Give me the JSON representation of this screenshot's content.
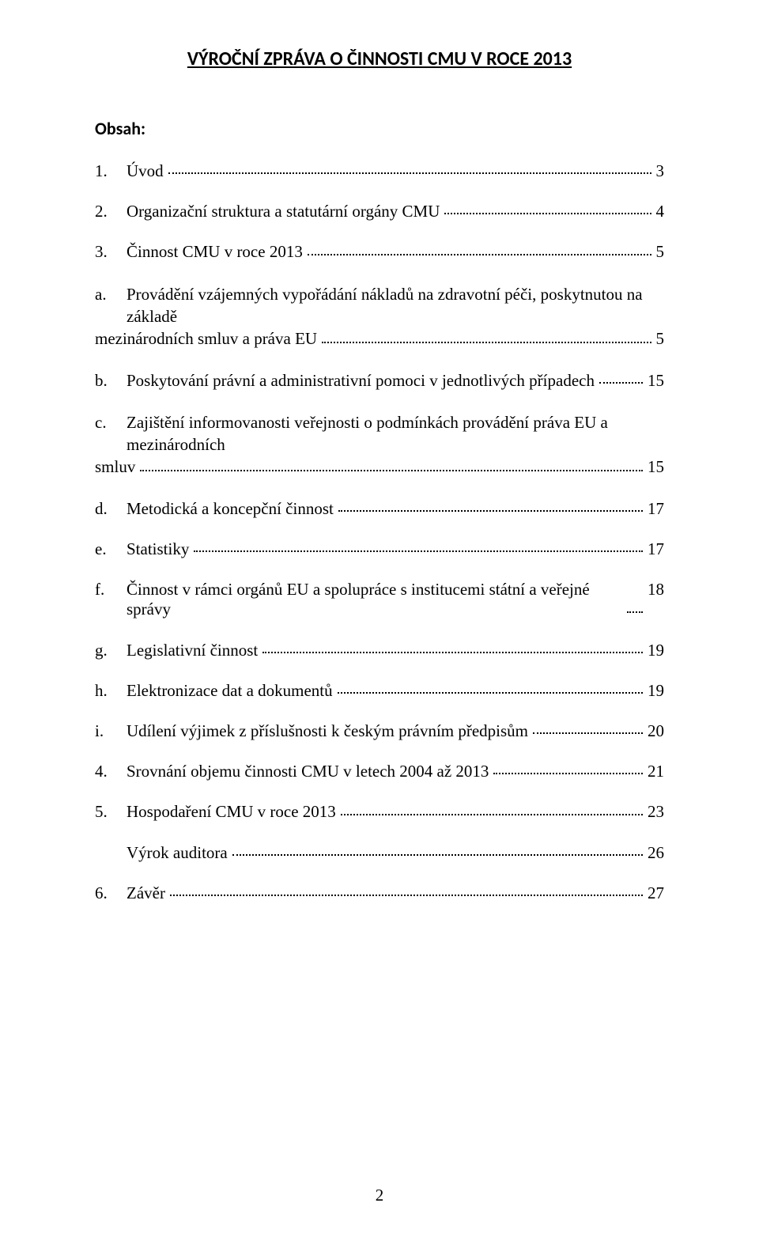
{
  "header": {
    "title": "VÝROČNÍ ZPRÁVA O ČINNOSTI CMU V ROCE 2013"
  },
  "obsah_label": "Obsah:",
  "toc": {
    "e1": {
      "num": "1.",
      "text": "Úvod",
      "page": "3"
    },
    "e2": {
      "num": "2.",
      "text": "Organizační struktura a statutární orgány CMU",
      "page": "4"
    },
    "e3": {
      "num": "3.",
      "text": "Činnost CMU v roce 2013",
      "page": "5"
    },
    "e3a_line1": {
      "num": "a.",
      "text": "Provádění vzájemných vypořádání nákladů na zdravotní péči, poskytnutou na základě"
    },
    "e3a_line2": {
      "text": "mezinárodních smluv a práva EU",
      "page": "5"
    },
    "e3b": {
      "num": "b.",
      "text": "Poskytování právní a administrativní pomoci v jednotlivých případech",
      "page": "15"
    },
    "e3c_line1": {
      "num": "c.",
      "text": "Zajištění informovanosti veřejnosti o podmínkách provádění práva EU a mezinárodních"
    },
    "e3c_line2": {
      "text": "smluv",
      "page": "15"
    },
    "e3d": {
      "num": "d.",
      "text": "Metodická a koncepční činnost",
      "page": "17"
    },
    "e3e": {
      "num": "e.",
      "text": "Statistiky",
      "page": "17"
    },
    "e3f": {
      "num": "f.",
      "text": "Činnost v rámci orgánů EU a spolupráce s institucemi státní a veřejné správy",
      "page": "18"
    },
    "e3g": {
      "num": "g.",
      "text": "Legislativní činnost",
      "page": "19"
    },
    "e3h": {
      "num": "h.",
      "text": "Elektronizace dat a dokumentů",
      "page": "19"
    },
    "e3i": {
      "num": "i.",
      "text": "Udílení výjimek z příslušnosti k českým právním předpisům",
      "page": "20"
    },
    "e4": {
      "num": "4.",
      "text": "Srovnání objemu činnosti CMU v letech 2004 až 2013",
      "page": "21"
    },
    "e5": {
      "num": "5.",
      "text": "Hospodaření CMU v roce 2013",
      "page": "23"
    },
    "e5a": {
      "text": "Výrok auditora",
      "page": "26"
    },
    "e6": {
      "num": "6.",
      "text": "Závěr",
      "page": "27"
    }
  },
  "footer": {
    "page_number": "2"
  }
}
